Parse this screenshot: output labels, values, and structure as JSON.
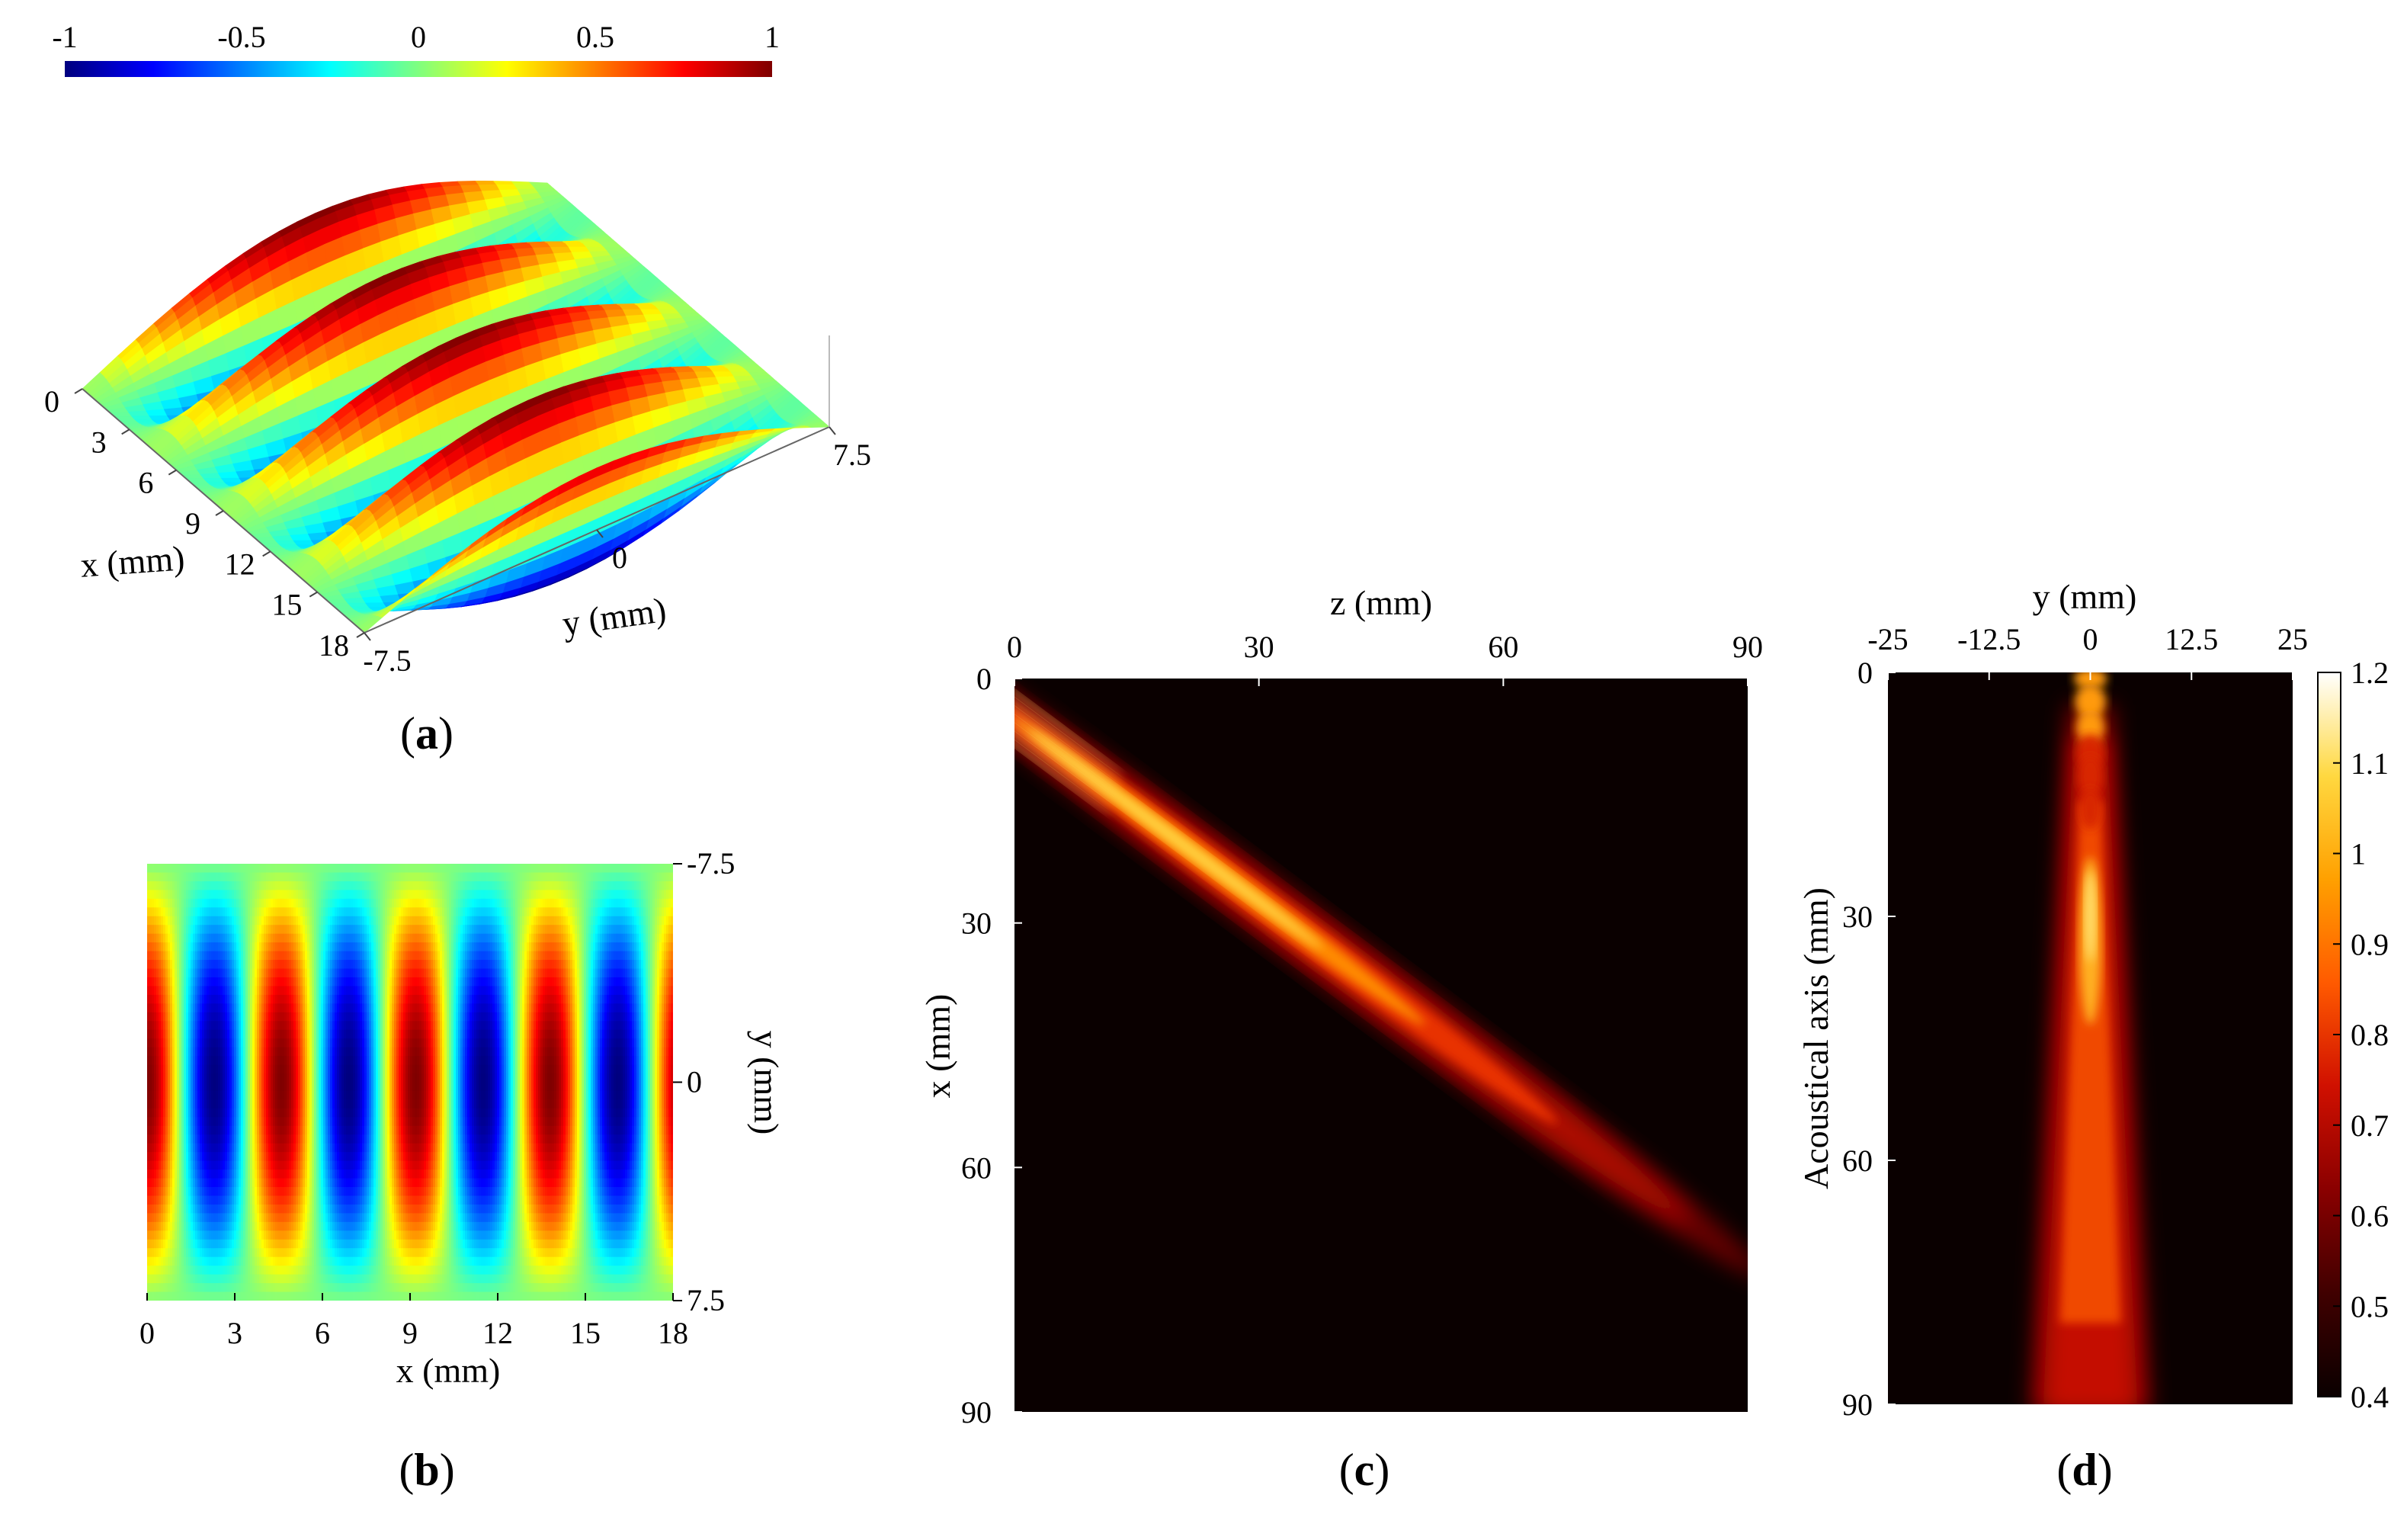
{
  "colors": {
    "jet": [
      "#00007f",
      "#0000ff",
      "#007fff",
      "#00ffff",
      "#7fff7f",
      "#ffff00",
      "#ff7f00",
      "#ff0000",
      "#7f0000"
    ],
    "hot": [
      "#0a0000",
      "#400000",
      "#8a0000",
      "#d01000",
      "#ff5a00",
      "#ffa000",
      "#ffd840",
      "#ffffff"
    ]
  },
  "chart_data": [
    {
      "id": "a",
      "type": "surface",
      "panel_label_open": "(",
      "panel_label_letter": "a",
      "panel_label_close": ")",
      "colorbar_ticks": [
        "-1",
        "-0.5",
        "0",
        "0.5",
        "1"
      ],
      "colorbar_range": [
        -1,
        1
      ],
      "x_ticks": [
        "0",
        "3",
        "6",
        "9",
        "12",
        "15",
        "18"
      ],
      "y_ticks": [
        "-7.5",
        "0",
        "7.5"
      ],
      "xlabel": "x (mm)",
      "ylabel": "y (mm)",
      "xlim": [
        0,
        18
      ],
      "ylim": [
        -7.5,
        7.5
      ],
      "zlim": [
        -1,
        1
      ]
    },
    {
      "id": "b",
      "type": "heatmap",
      "panel_label_open": "(",
      "panel_label_letter": "b",
      "panel_label_close": ")",
      "x_ticks": [
        "0",
        "3",
        "6",
        "9",
        "12",
        "15",
        "18"
      ],
      "y_ticks": [
        "-7.5",
        "0",
        "7.5"
      ],
      "xlabel": "x (mm)",
      "ylabel": "y (mm)",
      "xlim": [
        0,
        18
      ],
      "ylim": [
        -7.5,
        7.5
      ],
      "wave_period_mm": 4.6,
      "value_range": [
        -1,
        1
      ]
    },
    {
      "id": "c",
      "type": "heatmap",
      "panel_label_open": "(",
      "panel_label_letter": "c",
      "panel_label_close": ")",
      "x_ticks": [
        "0",
        "30",
        "60",
        "90"
      ],
      "y_ticks": [
        "0",
        "30",
        "60",
        "90"
      ],
      "xlabel": "z (mm)",
      "ylabel": "x (mm)",
      "xlim": [
        0,
        90
      ],
      "ylim": [
        0,
        90
      ],
      "beam_start": [
        0,
        5
      ],
      "beam_end": [
        90,
        72
      ],
      "value_range": [
        0.4,
        1.2
      ]
    },
    {
      "id": "d",
      "type": "heatmap",
      "panel_label_open": "(",
      "panel_label_letter": "d",
      "panel_label_close": ")",
      "x_ticks": [
        "-25",
        "-12.5",
        "0",
        "12.5",
        "25"
      ],
      "y_ticks": [
        "0",
        "30",
        "60",
        "90"
      ],
      "xlabel": "y (mm)",
      "ylabel": "Acoustical axis (mm)",
      "xlim": [
        -25,
        25
      ],
      "ylim": [
        0,
        90
      ],
      "colorbar_ticks": [
        "0.4",
        "0.5",
        "0.6",
        "0.7",
        "0.8",
        "0.9",
        "1",
        "1.1",
        "1.2"
      ],
      "colorbar_range": [
        0.4,
        1.2
      ]
    }
  ]
}
